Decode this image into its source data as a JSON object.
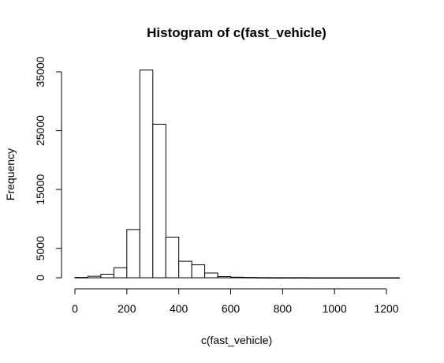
{
  "chart_data": {
    "type": "bar",
    "title": "Histogram of c(fast_vehicle)",
    "xlabel": "c(fast_vehicle)",
    "ylabel": "Frequency",
    "xlim": [
      0,
      1250
    ],
    "ylim": [
      0,
      35000
    ],
    "xticks": [
      0,
      200,
      400,
      600,
      800,
      1000,
      1200
    ],
    "yticks": [
      0,
      5000,
      15000,
      25000,
      35000
    ],
    "bin_width": 50,
    "bins": [
      {
        "x0": 0,
        "x1": 50,
        "count": 50
      },
      {
        "x0": 50,
        "x1": 100,
        "count": 250
      },
      {
        "x0": 100,
        "x1": 150,
        "count": 600
      },
      {
        "x0": 150,
        "x1": 200,
        "count": 1700
      },
      {
        "x0": 200,
        "x1": 250,
        "count": 8200
      },
      {
        "x0": 250,
        "x1": 300,
        "count": 35300
      },
      {
        "x0": 300,
        "x1": 350,
        "count": 26100
      },
      {
        "x0": 350,
        "x1": 400,
        "count": 6900
      },
      {
        "x0": 400,
        "x1": 450,
        "count": 2800
      },
      {
        "x0": 450,
        "x1": 500,
        "count": 2200
      },
      {
        "x0": 500,
        "x1": 550,
        "count": 800
      },
      {
        "x0": 550,
        "x1": 600,
        "count": 200
      },
      {
        "x0": 600,
        "x1": 650,
        "count": 100
      },
      {
        "x0": 650,
        "x1": 700,
        "count": 50
      },
      {
        "x0": 700,
        "x1": 750,
        "count": 30
      },
      {
        "x0": 750,
        "x1": 800,
        "count": 20
      },
      {
        "x0": 800,
        "x1": 850,
        "count": 10
      },
      {
        "x0": 850,
        "x1": 900,
        "count": 8
      },
      {
        "x0": 900,
        "x1": 950,
        "count": 5
      },
      {
        "x0": 950,
        "x1": 1000,
        "count": 4
      },
      {
        "x0": 1000,
        "x1": 1050,
        "count": 3
      },
      {
        "x0": 1050,
        "x1": 1100,
        "count": 2
      },
      {
        "x0": 1100,
        "x1": 1150,
        "count": 2
      },
      {
        "x0": 1150,
        "x1": 1200,
        "count": 1
      },
      {
        "x0": 1200,
        "x1": 1250,
        "count": 1
      }
    ]
  }
}
